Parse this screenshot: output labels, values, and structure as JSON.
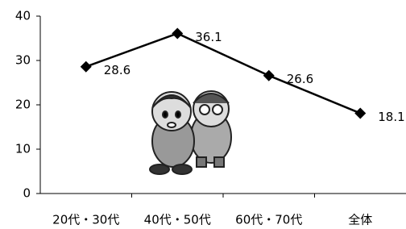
{
  "chart_data": {
    "type": "line",
    "categories": [
      "20代・30代",
      "40代・50代",
      "60代・70代",
      "全体"
    ],
    "series": [
      {
        "color": "#000000",
        "values": [
          28.6,
          36.1,
          26.6,
          18.1
        ]
      }
    ],
    "ylim": [
      0,
      40
    ],
    "yticks": [
      0,
      10,
      20,
      30,
      40
    ],
    "grid": false
  }
}
